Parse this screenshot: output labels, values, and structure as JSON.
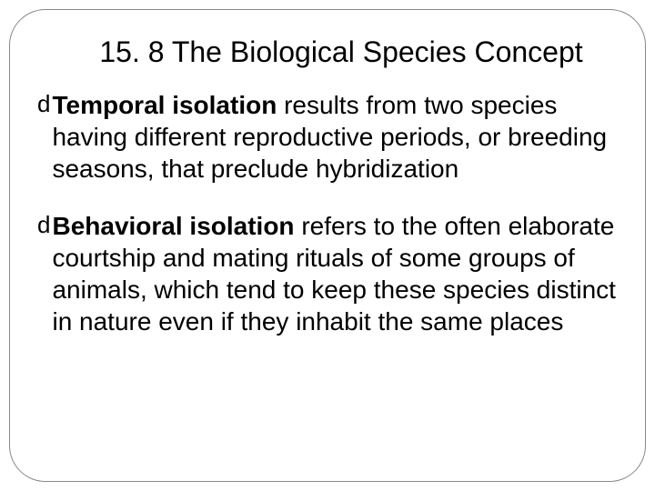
{
  "slide": {
    "title": "15. 8 The Biological Species Concept",
    "bullets": [
      {
        "bold": "Temporal isolation ",
        "rest": "results from two species having different reproductive periods, or breeding seasons, that preclude hybridization"
      },
      {
        "bold": "Behavioral isolation ",
        "rest": "refers to the often elaborate courtship and mating rituals of some groups of animals, which tend to keep these species distinct in nature even if they inhabit the same places"
      }
    ],
    "bullet_marker": "d",
    "slide_number": ""
  },
  "style": {
    "background_color": "#ffffff",
    "border_color": "#888888",
    "border_radius": 40,
    "title_fontsize": 32,
    "body_fontsize": 28,
    "text_color": "#000000",
    "number_color": "#888888"
  }
}
